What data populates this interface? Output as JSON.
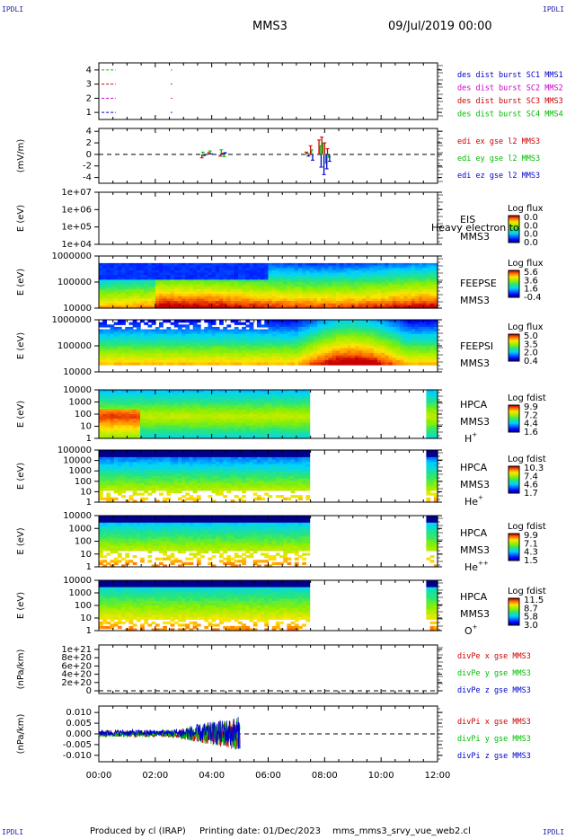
{
  "corners": {
    "tl": "IPDLI",
    "tr": "IPDLI",
    "bl": "IPDLI",
    "br": "IPDLI"
  },
  "header": {
    "mission": "MMS3",
    "datetime": "09/Jul/2019 00:00"
  },
  "footer": {
    "produced": "Produced by cl (IRAP)",
    "printing": "Printing date: 01/Dec/2023",
    "script": "mms_mms3_srvy_vue_web2.cl"
  },
  "chart_data": [
    {
      "type": "line",
      "id": "burst",
      "yticks": [
        "1",
        "2",
        "3",
        "4"
      ],
      "ylim": [
        0.5,
        4.5
      ],
      "legend": [
        {
          "text": "des dist burst SC1 MMS1",
          "color": "#0000cc"
        },
        {
          "text": "des dist burst SC2 MMS2",
          "color": "#cc00cc"
        },
        {
          "text": "des dist burst SC3 MMS3",
          "color": "#cc0000"
        },
        {
          "text": "des dist burst SC4 MMS4",
          "color": "#00bb00"
        }
      ],
      "series": [
        {
          "name": "des dist burst SC4 MMS4",
          "y": 4,
          "segments": [
            [
              0.1,
              0.6
            ],
            [
              2.55,
              2.6
            ]
          ]
        },
        {
          "name": "des dist burst SC3 MMS3",
          "y": 3,
          "segments": [
            [
              0.1,
              0.6
            ],
            [
              2.55,
              2.6
            ]
          ]
        },
        {
          "name": "des dist burst SC2 MMS2",
          "y": 2,
          "segments": [
            [
              0.1,
              0.6
            ],
            [
              2.55,
              2.6
            ]
          ]
        },
        {
          "name": "des dist burst SC1 MMS1",
          "y": 1,
          "segments": [
            [
              0.1,
              0.6
            ],
            [
              2.55,
              2.6
            ]
          ]
        }
      ]
    },
    {
      "type": "scatter",
      "id": "edi",
      "ylabel": "(mV/m)",
      "yticks": [
        "-4",
        "-2",
        "0",
        "2",
        "4"
      ],
      "ylim": [
        -5,
        4.5
      ],
      "legend": [
        {
          "text": "edi ex gse l2 MMS3",
          "color": "#cc0000"
        },
        {
          "text": "edi ey gse l2 MMS3",
          "color": "#00bb00"
        },
        {
          "text": "edi ez gse l2 MMS3",
          "color": "#0000cc"
        }
      ],
      "bursts": [
        {
          "t": 3.65,
          "ex": -0.6,
          "ey": 0.4,
          "ez": -0.2
        },
        {
          "t": 3.9,
          "ex": 0.3,
          "ey": 0.6,
          "ez": 0.1
        },
        {
          "t": 4.3,
          "ex": -0.3,
          "ey": 0.8,
          "ez": 0.0
        },
        {
          "t": 4.4,
          "ex": 0.2,
          "ey": -0.4,
          "ez": 0.3
        },
        {
          "t": 7.35,
          "ex": 0.4,
          "ey": 0.2,
          "ez": -0.3
        },
        {
          "t": 7.5,
          "ex": 1.5,
          "ey": 0.8,
          "ez": -1.0
        },
        {
          "t": 7.8,
          "ex": 2.5,
          "ey": 1.5,
          "ez": -2.2
        },
        {
          "t": 7.9,
          "ex": 3.0,
          "ey": 2.0,
          "ez": -3.5
        },
        {
          "t": 8.0,
          "ex": 2.0,
          "ey": -1.5,
          "ez": -2.5
        },
        {
          "t": 8.1,
          "ex": 1.0,
          "ey": -0.5,
          "ez": -1.2
        }
      ]
    },
    {
      "type": "heatmap",
      "id": "eis",
      "ylabel": "E (eV)",
      "yticks": [
        "1e+04",
        "1e+05",
        "1e+06",
        "1e+07"
      ],
      "name": "EIS",
      "sub": "MMS3",
      "extra": "Heavy electron to",
      "cbtitle": "Log flux",
      "cbticks": [
        "0.0",
        "0.0",
        "0.0",
        "0.0"
      ],
      "coverage": []
    },
    {
      "type": "heatmap",
      "id": "feepse",
      "ylabel": "E (eV)",
      "yticks": [
        "10000",
        "100000",
        "1000000"
      ],
      "name": "FEEPSE",
      "sub": "MMS3",
      "cbtitle": "Log flux",
      "cbticks": [
        "5.6",
        "3.6",
        "1.6",
        "-0.4"
      ],
      "coverage": [
        [
          0,
          12
        ]
      ]
    },
    {
      "type": "heatmap",
      "id": "feepsi",
      "ylabel": "E (eV)",
      "yticks": [
        "10000",
        "100000",
        "1000000"
      ],
      "name": "FEEPSI",
      "sub": "MMS3",
      "cbtitle": "Log flux",
      "cbticks": [
        "5.0",
        "3.5",
        "2.0",
        "0.4"
      ],
      "coverage": [
        [
          0,
          12
        ]
      ]
    },
    {
      "type": "heatmap",
      "id": "hpca_h",
      "ylabel": "E (eV)",
      "yticks": [
        "1",
        "10",
        "100",
        "1000",
        "10000"
      ],
      "name": "HPCA",
      "sub": "MMS3",
      "species": "H",
      "sup": "+",
      "cbtitle": "Log fdist",
      "cbticks": [
        "9.9",
        "7.2",
        "4.4",
        "1.6"
      ],
      "coverage": [
        [
          0,
          7.45
        ],
        [
          11.55,
          12
        ]
      ]
    },
    {
      "type": "heatmap",
      "id": "hpca_he",
      "ylabel": "E (eV)",
      "yticks": [
        "1",
        "10",
        "100",
        "1000",
        "10000",
        "100000"
      ],
      "name": "HPCA",
      "sub": "MMS3",
      "species": "He",
      "sup": "+",
      "cbtitle": "Log fdist",
      "cbticks": [
        "10.3",
        "7.4",
        "4.6",
        "1.7"
      ],
      "coverage": [
        [
          0,
          7.45
        ],
        [
          11.55,
          12
        ]
      ]
    },
    {
      "type": "heatmap",
      "id": "hpca_hepp",
      "ylabel": "E (eV)",
      "yticks": [
        "1",
        "10",
        "100",
        "1000",
        "10000"
      ],
      "name": "HPCA",
      "sub": "MMS3",
      "species": "He",
      "sup": "++",
      "cbtitle": "Log fdist",
      "cbticks": [
        "9.9",
        "7.1",
        "4.3",
        "1.5"
      ],
      "coverage": [
        [
          0,
          7.45
        ],
        [
          11.55,
          12
        ]
      ]
    },
    {
      "type": "heatmap",
      "id": "hpca_o",
      "ylabel": "E (eV)",
      "yticks": [
        "1",
        "10",
        "100",
        "1000",
        "10000"
      ],
      "name": "HPCA",
      "sub": "MMS3",
      "species": "O",
      "sup": "+",
      "cbtitle": "Log fdist",
      "cbticks": [
        "11.5",
        "8.7",
        "5.8",
        "3.0"
      ],
      "coverage": [
        [
          0,
          7.45
        ],
        [
          11.55,
          12
        ]
      ]
    },
    {
      "type": "line",
      "id": "divpe",
      "ylabel": "(nPa/km)",
      "yticks": [
        "0",
        "2e+20",
        "4e+20",
        "6e+20",
        "8e+20",
        "1e+21"
      ],
      "legend": [
        {
          "text": "divPe x gse MMS3",
          "color": "#cc0000"
        },
        {
          "text": "divPe y gse MMS3",
          "color": "#00bb00"
        },
        {
          "text": "divPe z gse MMS3",
          "color": "#0000cc"
        }
      ]
    },
    {
      "type": "line",
      "id": "divpi",
      "ylabel": "(nPa/km)",
      "yticks": [
        "-0.010",
        "-0.005",
        "0.000",
        "0.005",
        "0.010"
      ],
      "ylim": [
        -0.013,
        0.013
      ],
      "data_end": 5.0,
      "legend": [
        {
          "text": "divPi x gse MMS3",
          "color": "#cc0000"
        },
        {
          "text": "divPi y gse MMS3",
          "color": "#00bb00"
        },
        {
          "text": "divPi z gse MMS3",
          "color": "#0000cc"
        }
      ]
    }
  ],
  "xaxis": {
    "ticks": [
      "00:00",
      "02:00",
      "04:00",
      "06:00",
      "08:00",
      "10:00",
      "12:00"
    ],
    "range": [
      0,
      12
    ]
  }
}
